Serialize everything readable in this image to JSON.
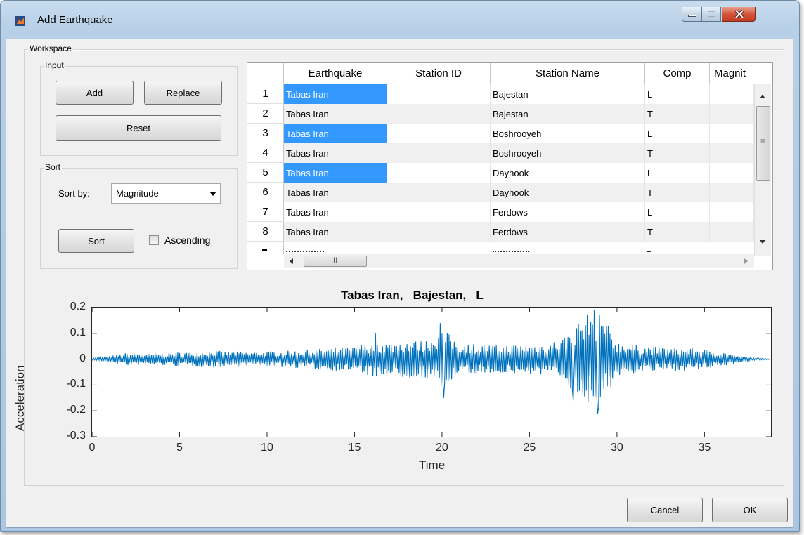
{
  "window": {
    "title": "Add Earthquake"
  },
  "workspace": {
    "label": "Workspace"
  },
  "input_panel": {
    "label": "Input",
    "add": "Add",
    "replace": "Replace",
    "reset": "Reset"
  },
  "sort_panel": {
    "label": "Sort",
    "sort_by_label": "Sort by:",
    "sort_by_value": "Magnitude",
    "sort_button": "Sort",
    "ascending_label": "Ascending",
    "ascending_checked": false
  },
  "table": {
    "columns": [
      "Earthquake",
      "Station ID",
      "Station Name",
      "Comp",
      "Magnit"
    ],
    "rows": [
      {
        "num": "1",
        "earthquake": "Tabas Iran",
        "station_id": "",
        "station_name": "Bajestan",
        "comp": "L",
        "magnitude": ""
      },
      {
        "num": "2",
        "earthquake": "Tabas Iran",
        "station_id": "",
        "station_name": "Bajestan",
        "comp": "T",
        "magnitude": ""
      },
      {
        "num": "3",
        "earthquake": "Tabas Iran",
        "station_id": "",
        "station_name": "Boshrooyeh",
        "comp": "L",
        "magnitude": ""
      },
      {
        "num": "4",
        "earthquake": "Tabas Iran",
        "station_id": "",
        "station_name": "Boshrooyeh",
        "comp": "T",
        "magnitude": ""
      },
      {
        "num": "5",
        "earthquake": "Tabas Iran",
        "station_id": "",
        "station_name": "Dayhook",
        "comp": "L",
        "magnitude": ""
      },
      {
        "num": "6",
        "earthquake": "Tabas Iran",
        "station_id": "",
        "station_name": "Dayhook",
        "comp": "T",
        "magnitude": ""
      },
      {
        "num": "7",
        "earthquake": "Tabas Iran",
        "station_id": "",
        "station_name": "Ferdows",
        "comp": "L",
        "magnitude": ""
      },
      {
        "num": "8",
        "earthquake": "Tabas Iran",
        "station_id": "",
        "station_name": "Ferdows",
        "comp": "T",
        "magnitude": ""
      }
    ],
    "selected_rows": [
      1,
      3,
      5
    ],
    "hscroll_grip": "III",
    "vscroll_grip": "≡"
  },
  "chart_data": {
    "type": "line",
    "title": "Tabas Iran,   Bajestan,   L",
    "xlabel": "Time",
    "ylabel": "Acceleration",
    "xlim": [
      0,
      38.8
    ],
    "ylim": [
      -0.3,
      0.2
    ],
    "xticks": [
      "0",
      "5",
      "10",
      "15",
      "20",
      "25",
      "30",
      "35"
    ],
    "yticks": [
      "0.2",
      "0.1",
      "0",
      "-0.1",
      "-0.2",
      "-0.3"
    ],
    "series": [
      {
        "color": "#0072bd",
        "envelope": [
          [
            0,
            0.005
          ],
          [
            1,
            0.012
          ],
          [
            2,
            0.025
          ],
          [
            3,
            0.022
          ],
          [
            4,
            0.024
          ],
          [
            5,
            0.028
          ],
          [
            6,
            0.03
          ],
          [
            7,
            0.033
          ],
          [
            8,
            0.03
          ],
          [
            9,
            0.028
          ],
          [
            10,
            0.03
          ],
          [
            11,
            0.032
          ],
          [
            12,
            0.035
          ],
          [
            13,
            0.04
          ],
          [
            14,
            0.045
          ],
          [
            15,
            0.048
          ],
          [
            16,
            0.07
          ],
          [
            17,
            0.065
          ],
          [
            18,
            0.075
          ],
          [
            19,
            0.07
          ],
          [
            20,
            0.12
          ],
          [
            21,
            0.065
          ],
          [
            22,
            0.06
          ],
          [
            23,
            0.055
          ],
          [
            24,
            0.058
          ],
          [
            25,
            0.06
          ],
          [
            26,
            0.062
          ],
          [
            27,
            0.09
          ],
          [
            28,
            0.16
          ],
          [
            29,
            0.19
          ],
          [
            30,
            0.07
          ],
          [
            31,
            0.055
          ],
          [
            32,
            0.05
          ],
          [
            33,
            0.045
          ],
          [
            34,
            0.045
          ],
          [
            35,
            0.04
          ],
          [
            36,
            0.03
          ],
          [
            37,
            0.012
          ],
          [
            38,
            0.004
          ],
          [
            38.8,
            0.002
          ]
        ],
        "spikes": [
          [
            16.2,
            0.1
          ],
          [
            19.9,
            0.14
          ],
          [
            20.1,
            -0.15
          ],
          [
            27.7,
            0.12
          ],
          [
            28.3,
            0.17
          ],
          [
            28.7,
            0.19
          ],
          [
            28.9,
            -0.21
          ],
          [
            27.5,
            -0.16
          ]
        ]
      }
    ]
  },
  "buttons": {
    "cancel": "Cancel",
    "ok": "OK"
  }
}
